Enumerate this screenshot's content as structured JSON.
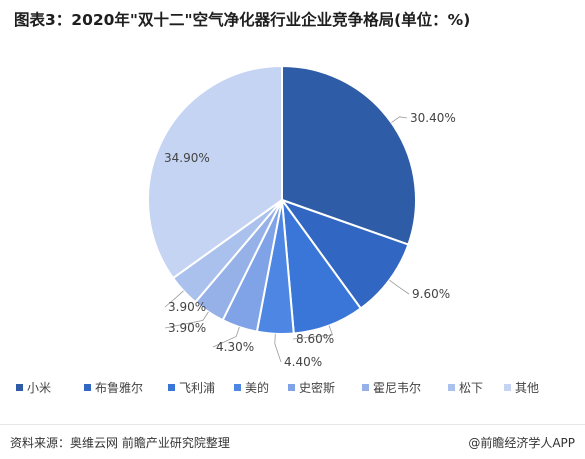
{
  "title": "图表3：2020年\"双十二\"空气净化器行业企业竞争格局(单位：%)",
  "chart_data": {
    "type": "pie",
    "categories": [
      "小米",
      "布鲁雅尔",
      "飞利浦",
      "美的",
      "史密斯",
      "霍尼韦尔",
      "松下",
      "其他"
    ],
    "values": [
      30.4,
      9.6,
      8.6,
      4.4,
      4.3,
      3.9,
      3.9,
      34.9
    ],
    "value_labels": [
      "30.40%",
      "9.60%",
      "8.60%",
      "4.40%",
      "4.30%",
      "3.90%",
      "3.90%",
      "34.90%"
    ],
    "colors": [
      "#2e5ca6",
      "#3166c2",
      "#3a76d8",
      "#4d87e3",
      "#7fa3e6",
      "#95b1e8",
      "#a9c1ec",
      "#c5d4f2"
    ],
    "legend_placement": "bottom"
  },
  "footer": {
    "source": "资料来源：奥维云网 前瞻产业研究院整理",
    "brand": "@前瞻经济学人APP"
  }
}
